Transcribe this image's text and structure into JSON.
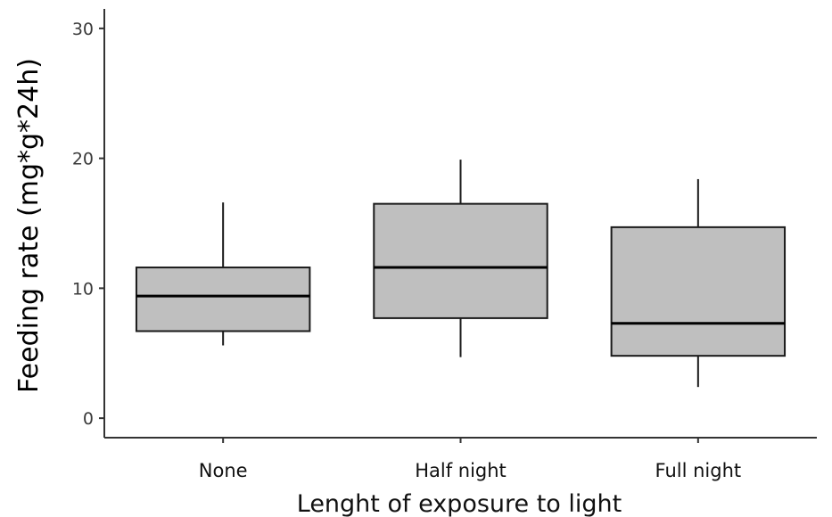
{
  "chart_data": {
    "type": "boxplot",
    "title": "",
    "xlabel": "Lenght of exposure to light",
    "ylabel": "Feeding rate (mg*g*24h)",
    "ylim": [
      -1.5,
      31.5
    ],
    "yticks": [
      0,
      10,
      20,
      30
    ],
    "grid": false,
    "categories": [
      "None",
      "Half night",
      "Full night"
    ],
    "boxes": [
      {
        "category": "None",
        "whisker_low": 5.6,
        "q1": 6.7,
        "median": 9.4,
        "q3": 11.6,
        "whisker_high": 16.6
      },
      {
        "category": "Half night",
        "whisker_low": 4.7,
        "q1": 7.7,
        "median": 11.6,
        "q3": 16.5,
        "whisker_high": 19.9
      },
      {
        "category": "Full night",
        "whisker_low": 2.4,
        "q1": 4.8,
        "median": 7.3,
        "q3": 14.7,
        "whisker_high": 18.4
      }
    ],
    "colors": {
      "box_fill": "#bfbfbf",
      "box_stroke": "#1a1a1a",
      "axis": "#333333"
    }
  }
}
